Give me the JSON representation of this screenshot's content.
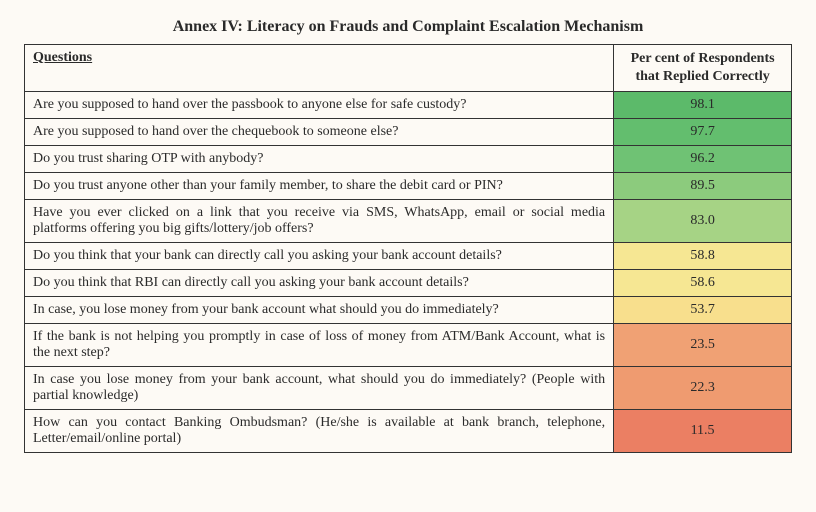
{
  "title": "Annex IV: Literacy on Frauds and Complaint Escalation Mechanism",
  "columns": {
    "q": "Questions",
    "p": "Per cent of Respondents that Replied Correctly"
  },
  "rows": [
    {
      "question": "Are you supposed to hand over the passbook to anyone else for safe custody?",
      "value": "98.1",
      "bg": "#5cba6a"
    },
    {
      "question": "Are you supposed to hand over the chequebook to someone else?",
      "value": "97.7",
      "bg": "#63be6e"
    },
    {
      "question": "Do you trust sharing OTP with anybody?",
      "value": "96.2",
      "bg": "#6fc274"
    },
    {
      "question": "Do you trust anyone other than your family member, to share the debit card or PIN?",
      "value": "89.5",
      "bg": "#8ccb7d"
    },
    {
      "question": "Have you ever clicked on a link that you receive via SMS, WhatsApp, email or social media platforms offering you big gifts/lottery/job offers?",
      "value": "83.0",
      "bg": "#a6d385"
    },
    {
      "question": "Do you think that your bank can directly call you asking your bank account details?",
      "value": "58.8",
      "bg": "#f6e793"
    },
    {
      "question": "Do you think that RBI can directly call you asking your bank account details?",
      "value": "58.6",
      "bg": "#f6e793"
    },
    {
      "question": "In case, you lose money from your bank account what should you do immediately?",
      "value": "53.7",
      "bg": "#f8df8d"
    },
    {
      "question": "If the bank is not helping you promptly in case of loss of money from ATM/Bank Account, what is the next step?",
      "value": "23.5",
      "bg": "#f0a174"
    },
    {
      "question": "In case you lose money from your bank account, what should you do immediately? (People with partial knowledge)",
      "value": "22.3",
      "bg": "#ef9b70"
    },
    {
      "question": "How can you contact Banking Ombudsman? (He/she is available at bank branch, telephone, Letter/email/online portal)",
      "value": "11.5",
      "bg": "#eb7f63"
    }
  ],
  "styles": {
    "page_bg": "#fdfaf5",
    "text_color": "#2a2a2a",
    "border_color": "#333333",
    "font_family": "Georgia, 'Times New Roman', serif",
    "title_fontsize": 16,
    "cell_fontsize": 14,
    "q_col_width_pct": 78,
    "p_col_width_pct": 22
  }
}
